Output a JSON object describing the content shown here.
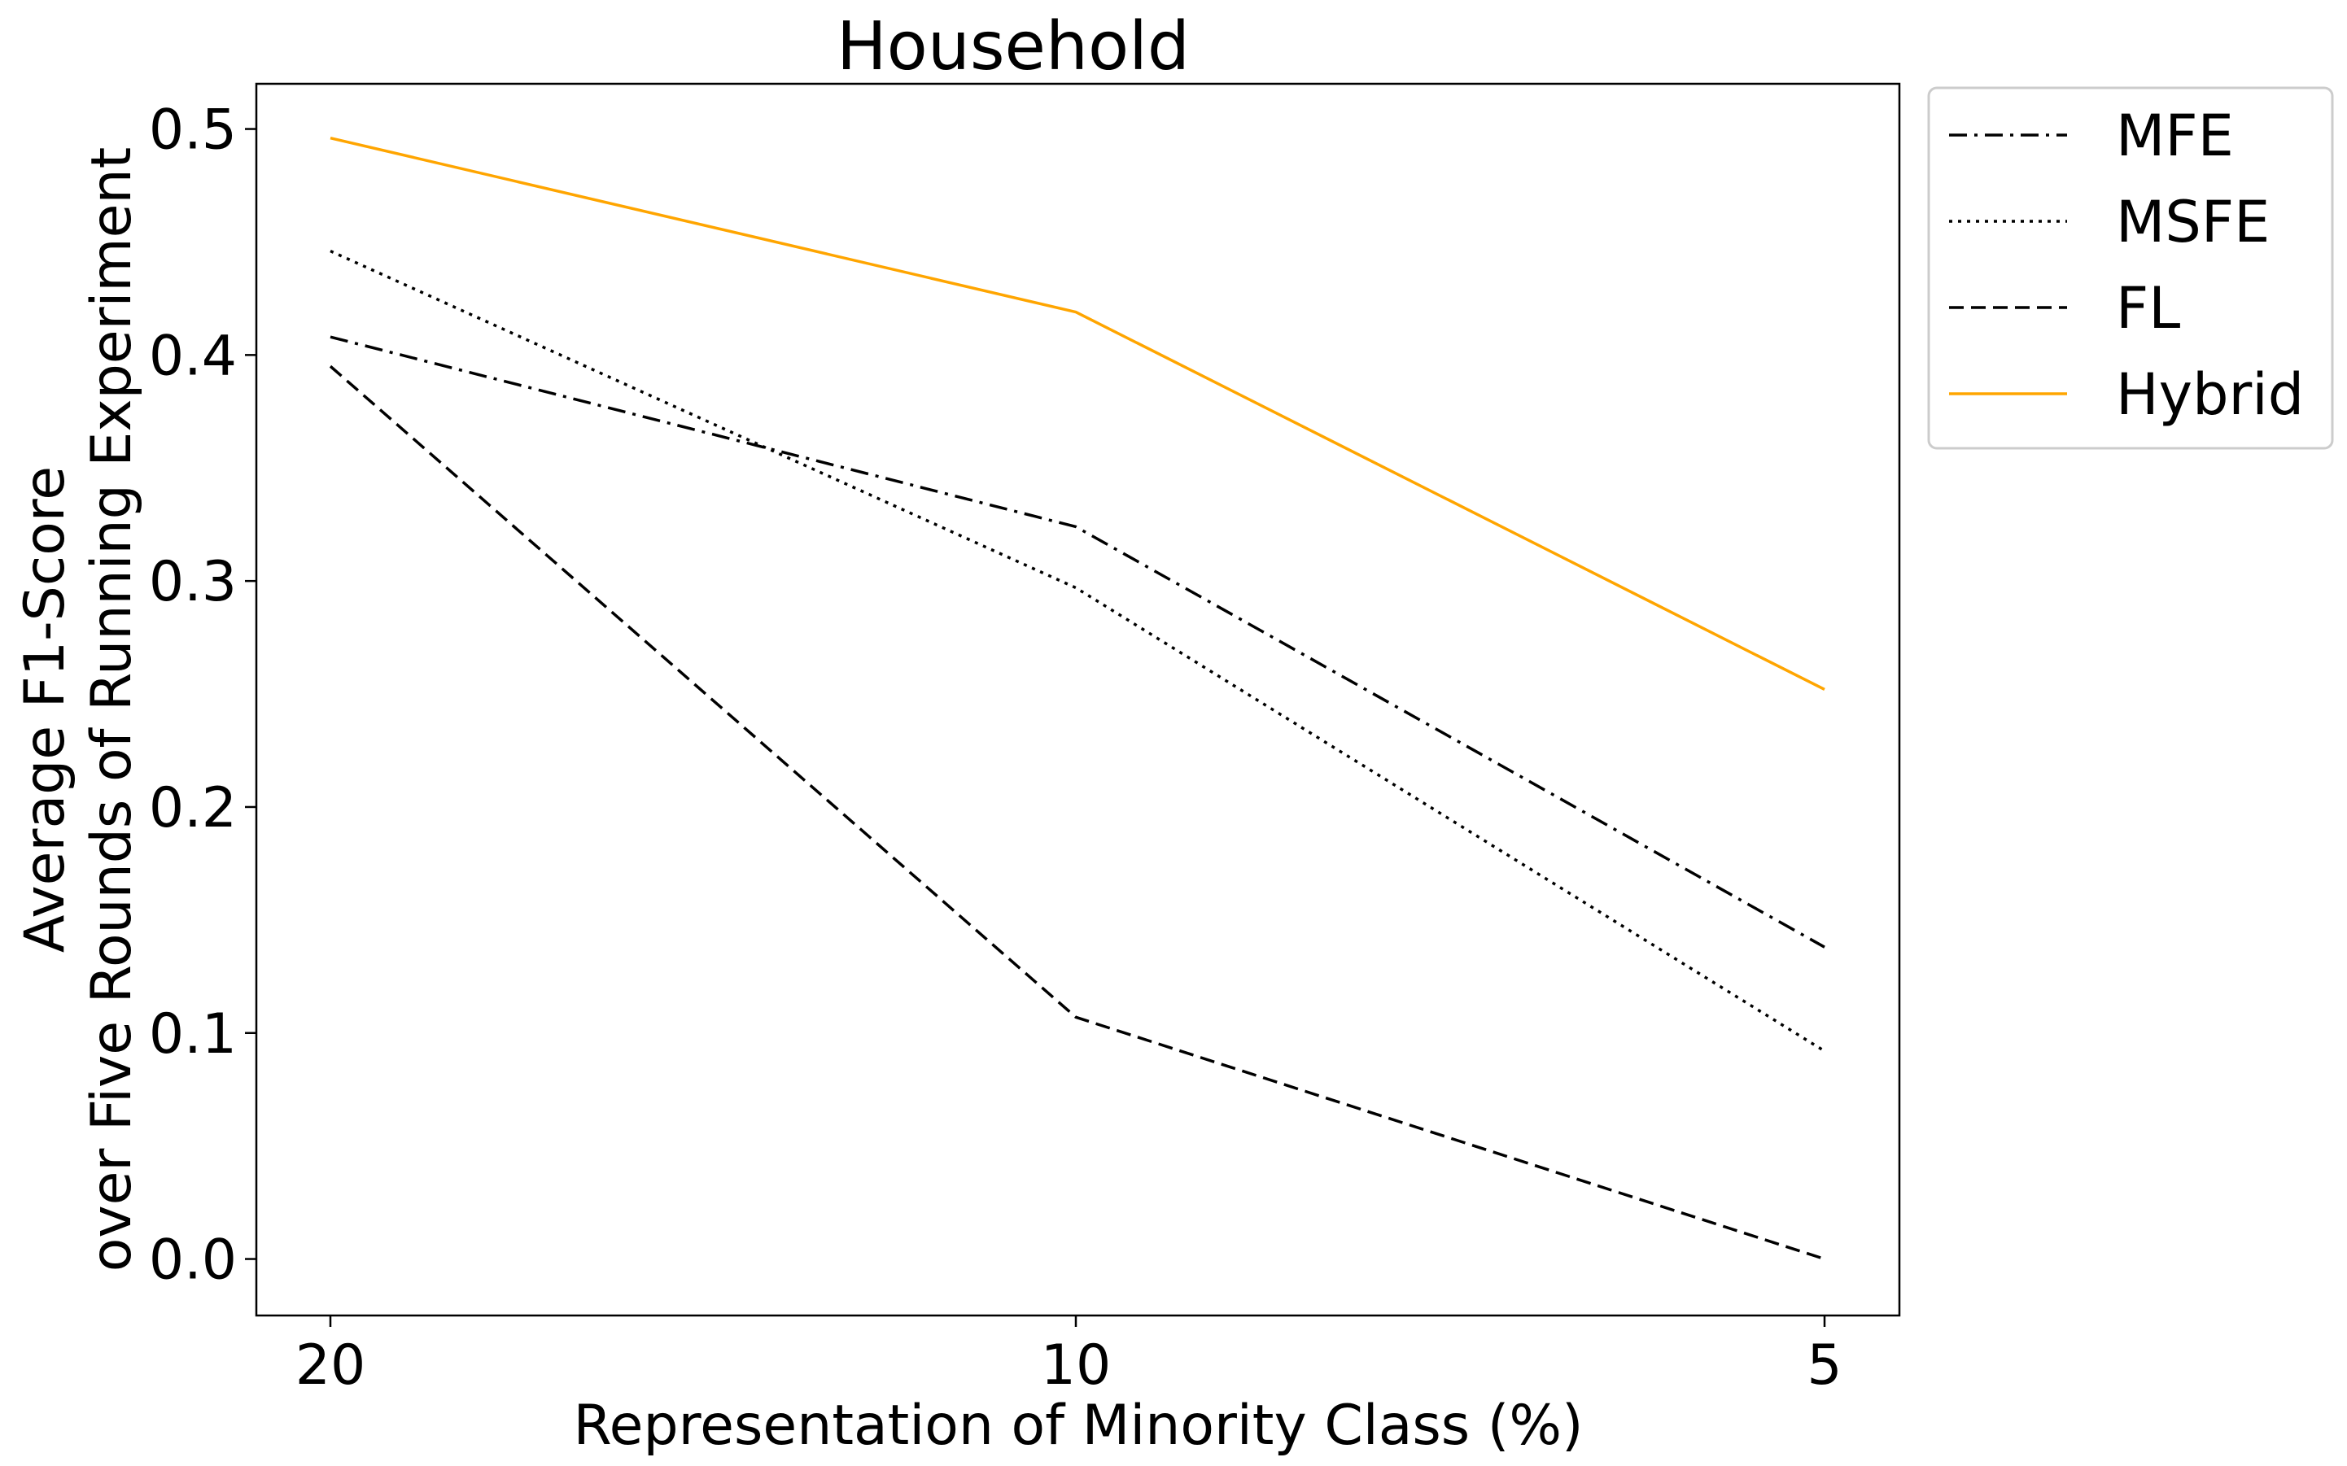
{
  "chart_data": {
    "type": "line",
    "title": "Household",
    "xlabel": "Representation of Minority Class (%)",
    "ylabel_lines": [
      "Average F1-Score",
      "over Five Rounds of Running Experiment"
    ],
    "categories": [
      "20",
      "10",
      "5"
    ],
    "ylim": [
      -0.025,
      0.52
    ],
    "yticks": [
      "0.0",
      "0.1",
      "0.2",
      "0.3",
      "0.4",
      "0.5"
    ],
    "grid": false,
    "legend_position": "outside-top-right",
    "series": [
      {
        "name": "MFE",
        "values": [
          0.408,
          0.324,
          0.138
        ],
        "color": "#000000",
        "dash": "dashdot"
      },
      {
        "name": "MSFE",
        "values": [
          0.446,
          0.297,
          0.092
        ],
        "color": "#000000",
        "dash": "dotted"
      },
      {
        "name": "FL",
        "values": [
          0.395,
          0.107,
          0.0
        ],
        "color": "#000000",
        "dash": "dashed"
      },
      {
        "name": "Hybrid",
        "values": [
          0.496,
          0.419,
          0.252
        ],
        "color": "#FFA500",
        "dash": "solid"
      }
    ]
  }
}
